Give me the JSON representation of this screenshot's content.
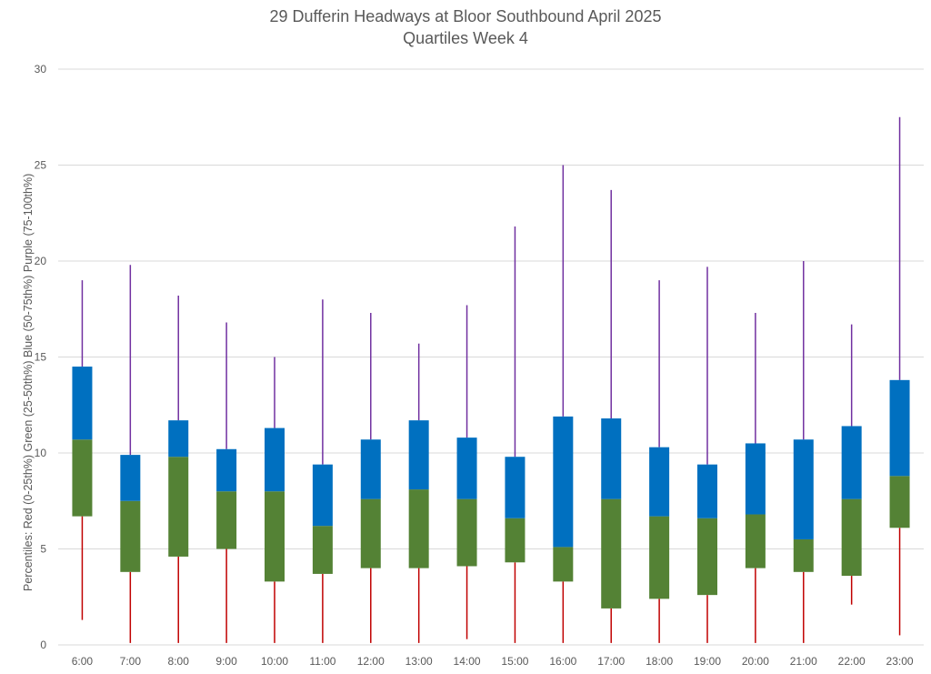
{
  "chart_data": {
    "type": "boxplot",
    "title": "29 Dufferin Headways at Bloor Southbound April 2025",
    "subtitle": "Quartiles Week 4",
    "xlabel": "",
    "ylabel": "Percentiles:  Red (0-25th%)  Green (25-50th%)  Blue (50-75th%)  Purple (75-100th%)",
    "ylim": [
      0,
      30
    ],
    "yticks": [
      0,
      5,
      10,
      15,
      20,
      25,
      30
    ],
    "grid": true,
    "categories": [
      "6:00",
      "7:00",
      "8:00",
      "9:00",
      "10:00",
      "11:00",
      "12:00",
      "13:00",
      "14:00",
      "15:00",
      "16:00",
      "17:00",
      "18:00",
      "19:00",
      "20:00",
      "21:00",
      "22:00",
      "23:00"
    ],
    "min": [
      1.3,
      0.1,
      0.1,
      0.1,
      0.1,
      0.1,
      0.1,
      0.1,
      0.3,
      0.1,
      0.1,
      0.1,
      0.1,
      0.1,
      0.1,
      0.1,
      2.1,
      0.5
    ],
    "q1": [
      6.7,
      3.8,
      4.6,
      5.0,
      3.3,
      3.7,
      4.0,
      4.0,
      4.1,
      4.3,
      3.3,
      1.9,
      2.4,
      2.6,
      4.0,
      3.8,
      3.6,
      6.1
    ],
    "median": [
      10.7,
      7.5,
      9.8,
      8.0,
      8.0,
      6.2,
      7.6,
      8.1,
      7.6,
      6.6,
      5.1,
      7.6,
      6.7,
      6.6,
      6.8,
      5.5,
      7.6,
      8.8
    ],
    "q3": [
      14.5,
      9.9,
      11.7,
      10.2,
      11.3,
      9.4,
      10.7,
      11.7,
      10.8,
      9.8,
      11.9,
      11.8,
      10.3,
      9.4,
      10.5,
      10.7,
      11.4,
      13.8
    ],
    "max": [
      19.0,
      19.8,
      18.2,
      16.8,
      15.0,
      18.0,
      17.3,
      15.7,
      17.7,
      21.8,
      25.0,
      23.7,
      19.0,
      19.7,
      17.3,
      20.0,
      16.7,
      27.5
    ],
    "colors": {
      "q0_25": "#c00000",
      "q25_50": "#548235",
      "q50_75": "#0070c0",
      "q75_100": "#7030a0",
      "grid": "#d9d9d9",
      "text": "#595959"
    }
  }
}
